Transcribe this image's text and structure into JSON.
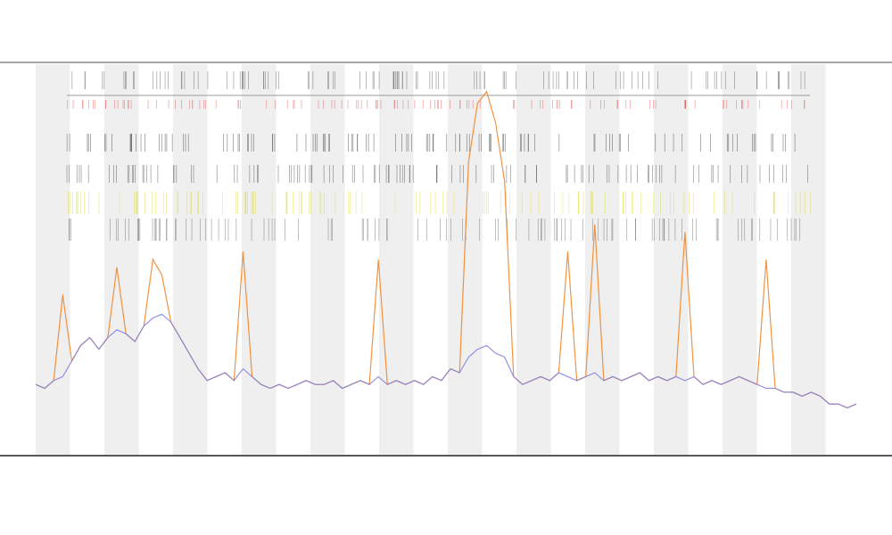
{
  "chart_data": {
    "type": "line",
    "x": [
      0,
      1,
      2,
      3,
      4,
      5,
      6,
      7,
      8,
      9,
      10,
      11,
      12,
      13,
      14,
      15,
      16,
      17,
      18,
      19,
      20,
      21,
      22,
      23,
      24,
      25,
      26,
      27,
      28,
      29,
      30,
      31,
      32,
      33,
      34,
      35,
      36,
      37,
      38,
      39,
      40,
      41,
      42,
      43,
      44,
      45,
      46,
      47,
      48,
      49,
      50,
      51,
      52,
      53,
      54,
      55,
      56,
      57,
      58,
      59,
      60,
      61,
      62,
      63,
      64,
      65,
      66,
      67,
      68,
      69,
      70,
      71,
      72,
      73,
      74,
      75,
      76,
      77,
      78,
      79,
      80,
      81,
      82,
      83,
      84,
      85,
      86,
      87,
      88,
      89,
      90,
      91
    ],
    "xlim": [
      0,
      91
    ],
    "ylim": [
      0,
      100
    ],
    "series": [
      {
        "color": "#f08020",
        "values": [
          18,
          17,
          19,
          41,
          24,
          28,
          30,
          27,
          30,
          48,
          31,
          29,
          33,
          50,
          46,
          34,
          30,
          26,
          22,
          19,
          20,
          21,
          19,
          52,
          20,
          18,
          17,
          18,
          17,
          18,
          19,
          18,
          18,
          19,
          17,
          18,
          19,
          18,
          50,
          18,
          19,
          18,
          19,
          18,
          20,
          19,
          22,
          21,
          75,
          90,
          93,
          85,
          70,
          20,
          18,
          19,
          20,
          19,
          21,
          52,
          19,
          20,
          59,
          19,
          20,
          19,
          20,
          21,
          19,
          20,
          19,
          20,
          57,
          20,
          18,
          19,
          18,
          19,
          20,
          19,
          18,
          50,
          17,
          16,
          16,
          15,
          16,
          15,
          13,
          13,
          12,
          13
        ]
      },
      {
        "color": "#8080e0",
        "values": [
          18,
          17,
          19,
          20,
          24,
          28,
          30,
          27,
          30,
          32,
          31,
          29,
          33,
          35,
          36,
          34,
          30,
          26,
          22,
          19,
          20,
          21,
          19,
          22,
          20,
          18,
          17,
          18,
          17,
          18,
          19,
          18,
          18,
          19,
          17,
          18,
          19,
          18,
          20,
          18,
          19,
          18,
          19,
          18,
          20,
          19,
          22,
          21,
          25,
          27,
          28,
          26,
          25,
          20,
          18,
          19,
          20,
          19,
          21,
          20,
          19,
          20,
          21,
          19,
          20,
          19,
          20,
          21,
          19,
          20,
          19,
          20,
          19,
          20,
          18,
          19,
          18,
          19,
          20,
          19,
          18,
          17,
          17,
          16,
          16,
          15,
          16,
          15,
          13,
          13,
          12,
          13
        ]
      }
    ]
  }
}
